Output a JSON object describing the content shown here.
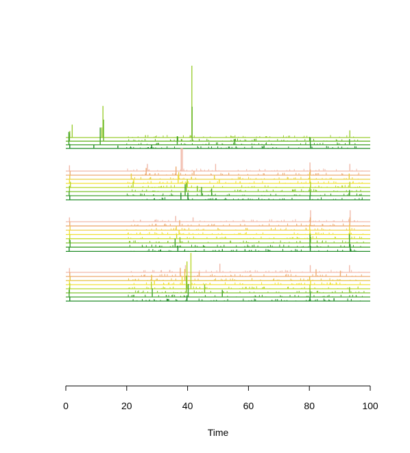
{
  "chart_data": {
    "type": "line",
    "title": "",
    "xlabel": "Time",
    "ylabel": "",
    "xlim": [
      0,
      100
    ],
    "x_ticks": [
      0,
      20,
      40,
      60,
      80,
      100
    ],
    "x_tick_labels": [
      "0",
      "20",
      "40",
      "60",
      "80",
      "100"
    ],
    "grid": false,
    "legend": "none",
    "groups": [
      {
        "name": "",
        "series": [
          {
            "color": "#9acd32",
            "peaks": [
              [
                1.3,
                0.45
              ],
              [
                2.1,
                0.9
              ],
              [
                11.8,
                0.7
              ],
              [
                12.2,
                2.2
              ],
              [
                41.4,
                5.0
              ],
              [
                93.3,
                0.5
              ]
            ]
          },
          {
            "color": "#6ab82d",
            "peaks": [
              [
                1.2,
                0.55
              ],
              [
                12.4,
                1.5
              ],
              [
                41.5,
                2.4
              ],
              [
                36.8,
                0.3
              ],
              [
                80.1,
                0.3
              ]
            ]
          },
          {
            "color": "#3ea02a",
            "peaks": [
              [
                1.0,
                0.9
              ],
              [
                11.3,
                1.2
              ],
              [
                36.6,
                0.6
              ],
              [
                55.5,
                0.4
              ],
              [
                80.3,
                0.5
              ],
              [
                93.2,
                0.4
              ]
            ]
          },
          {
            "color": "#1e8a26",
            "peaks": [
              [
                1.3,
                0.3
              ],
              [
                9.2,
                0.25
              ],
              [
                17.1,
                0.2
              ],
              [
                28.2,
                0.25
              ],
              [
                65.1,
                0.2
              ],
              [
                80.4,
                0.3
              ]
            ]
          }
        ]
      },
      {
        "name": "",
        "series": [
          {
            "color": "#f0b8a8",
            "peaks": [
              [
                1.2,
                0.4
              ],
              [
                26.8,
                0.5
              ],
              [
                37.9,
                1.6
              ],
              [
                38.3,
                1.6
              ],
              [
                49.2,
                0.5
              ],
              [
                80.2,
                0.6
              ],
              [
                93.3,
                0.5
              ]
            ]
          },
          {
            "color": "#eeaa70",
            "peaks": [
              [
                1.4,
                0.3
              ],
              [
                26.4,
                0.5
              ],
              [
                36.2,
                0.6
              ],
              [
                42.1,
                0.3
              ],
              [
                80.3,
                0.4
              ]
            ]
          },
          {
            "color": "#e8d040",
            "peaks": [
              [
                1.3,
                0.3
              ],
              [
                21.5,
                0.4
              ],
              [
                37.1,
                0.5
              ],
              [
                48.8,
                0.3
              ],
              [
                80.1,
                0.5
              ],
              [
                93.1,
                0.4
              ]
            ]
          },
          {
            "color": "#f0e030",
            "peaks": [
              [
                1.2,
                0.3
              ],
              [
                22.3,
                0.3
              ],
              [
                36.9,
                0.6
              ],
              [
                50.4,
                0.3
              ],
              [
                80.2,
                0.3
              ]
            ]
          },
          {
            "color": "#b8d628",
            "peaks": [
              [
                1.5,
                0.4
              ],
              [
                22.1,
                0.4
              ],
              [
                39.9,
                0.6
              ],
              [
                80.4,
                0.4
              ],
              [
                93.3,
                0.4
              ]
            ]
          },
          {
            "color": "#7cc22a",
            "peaks": [
              [
                1.2,
                0.4
              ],
              [
                39.6,
                0.6
              ],
              [
                43.2,
                0.4
              ],
              [
                80.2,
                0.3
              ]
            ]
          },
          {
            "color": "#3ea02a",
            "peaks": [
              [
                1.1,
                0.3
              ],
              [
                39.2,
                0.8
              ],
              [
                44.6,
                0.6
              ],
              [
                47.9,
                0.5
              ],
              [
                80.3,
                0.3
              ],
              [
                93.2,
                0.4
              ]
            ]
          },
          {
            "color": "#1e8a26",
            "peaks": [
              [
                1.3,
                0.3
              ],
              [
                37.8,
                0.5
              ],
              [
                40.1,
                0.5
              ],
              [
                80.2,
                0.3
              ]
            ]
          }
        ]
      },
      {
        "name": "",
        "series": [
          {
            "color": "#f0b8a8",
            "peaks": [
              [
                1.2,
                0.3
              ],
              [
                36.1,
                0.4
              ],
              [
                41.8,
                0.3
              ],
              [
                80.4,
                0.8
              ],
              [
                93.4,
                0.8
              ]
            ]
          },
          {
            "color": "#eeaa70",
            "peaks": [
              [
                1.3,
                0.3
              ],
              [
                37.4,
                0.4
              ],
              [
                80.3,
                0.6
              ],
              [
                93.3,
                0.6
              ]
            ]
          },
          {
            "color": "#f0d050",
            "peaks": [
              [
                1.4,
                0.3
              ],
              [
                36.3,
                0.3
              ],
              [
                80.1,
                0.4
              ],
              [
                93.2,
                0.4
              ]
            ]
          },
          {
            "color": "#f0e030",
            "peaks": [
              [
                1.2,
                0.3
              ],
              [
                37.2,
                0.3
              ],
              [
                80.2,
                0.4
              ],
              [
                93.3,
                0.4
              ]
            ]
          },
          {
            "color": "#c8dc30",
            "peaks": [
              [
                1.3,
                0.3
              ],
              [
                36.4,
                0.3
              ],
              [
                80.3,
                0.4
              ],
              [
                93.1,
                0.4
              ]
            ]
          },
          {
            "color": "#80c42a",
            "peaks": [
              [
                1.2,
                0.3
              ],
              [
                37.5,
                0.4
              ],
              [
                80.4,
                0.4
              ],
              [
                93.2,
                0.4
              ]
            ]
          },
          {
            "color": "#3ea02a",
            "peaks": [
              [
                1.4,
                0.5
              ],
              [
                35.9,
                0.6
              ],
              [
                80.2,
                0.9
              ],
              [
                93.2,
                0.9
              ]
            ]
          },
          {
            "color": "#1e8a26",
            "peaks": [
              [
                1.1,
                0.3
              ],
              [
                36.8,
                0.4
              ],
              [
                80.3,
                0.4
              ],
              [
                93.4,
                0.5
              ]
            ]
          }
        ]
      },
      {
        "name": "",
        "series": [
          {
            "color": "#f0b8a8",
            "peaks": [
              [
                1.2,
                0.3
              ],
              [
                39.3,
                0.5
              ],
              [
                50.6,
                0.6
              ],
              [
                80.3,
                0.5
              ],
              [
                93.2,
                0.5
              ]
            ]
          },
          {
            "color": "#eeaa70",
            "peaks": [
              [
                1.3,
                0.3
              ],
              [
                37.6,
                0.6
              ],
              [
                43.8,
                0.3
              ],
              [
                82.2,
                0.5
              ],
              [
                90.2,
                0.4
              ]
            ]
          },
          {
            "color": "#e8c040",
            "peaks": [
              [
                1.4,
                0.3
              ],
              [
                28.2,
                0.4
              ],
              [
                39.1,
                0.8
              ],
              [
                80.1,
                0.3
              ]
            ]
          },
          {
            "color": "#f0e030",
            "peaks": [
              [
                1.2,
                0.3
              ],
              [
                29.1,
                0.3
              ],
              [
                38.2,
                0.6
              ],
              [
                80.4,
                0.3
              ]
            ]
          },
          {
            "color": "#b8d628",
            "peaks": [
              [
                1.3,
                0.4
              ],
              [
                28.1,
                0.5
              ],
              [
                39.8,
                1.9
              ],
              [
                41.1,
                2.5
              ],
              [
                80.2,
                0.3
              ]
            ]
          },
          {
            "color": "#7cc22a",
            "peaks": [
              [
                1.2,
                0.4
              ],
              [
                39.6,
                1.2
              ],
              [
                45.6,
                0.6
              ],
              [
                80.2,
                0.3
              ],
              [
                93.2,
                0.4
              ]
            ]
          },
          {
            "color": "#3ea02a",
            "peaks": [
              [
                1.1,
                0.5
              ],
              [
                28.4,
                0.6
              ],
              [
                40.2,
                0.9
              ],
              [
                51.4,
                0.5
              ],
              [
                80.3,
                0.4
              ]
            ]
          },
          {
            "color": "#1e8a26",
            "peaks": [
              [
                1.3,
                0.3
              ],
              [
                39.8,
                0.4
              ],
              [
                80.2,
                0.3
              ],
              [
                88.1,
                0.2
              ]
            ]
          }
        ]
      }
    ]
  }
}
